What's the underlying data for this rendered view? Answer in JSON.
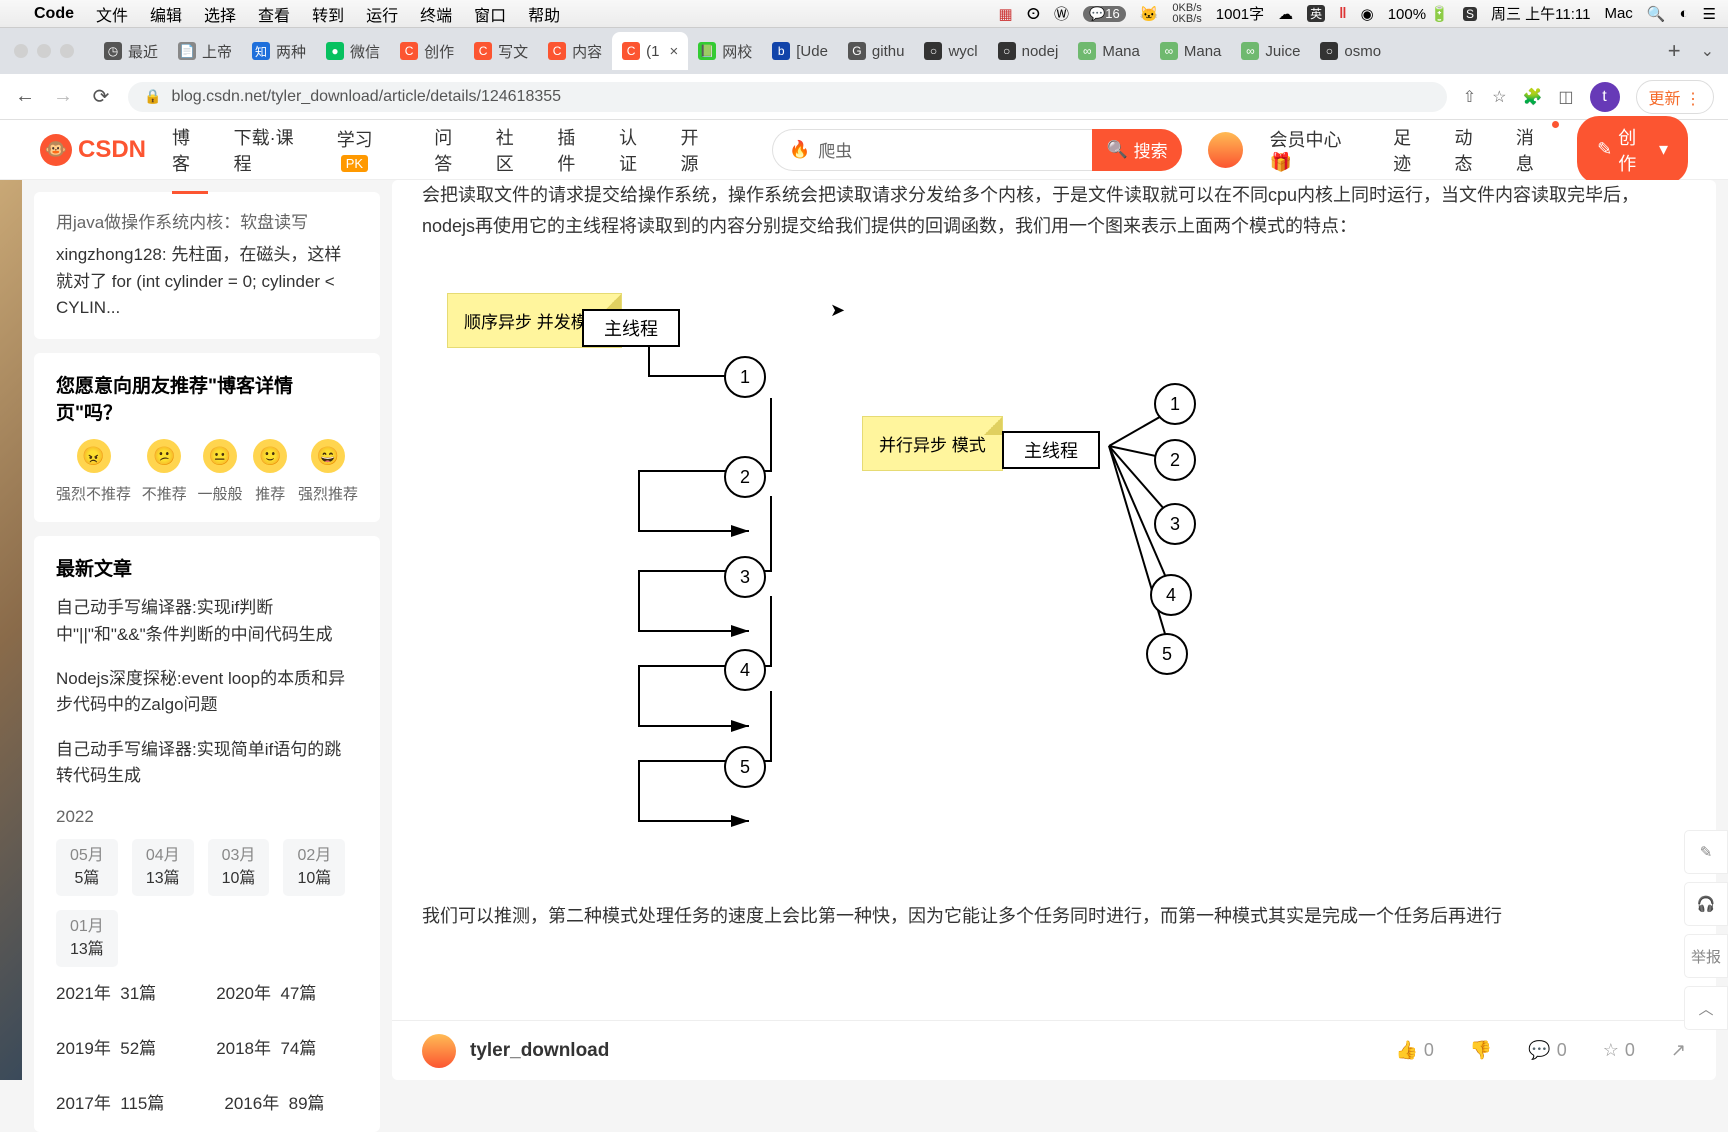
{
  "menubar": {
    "apple": "",
    "app": "Code",
    "items": [
      "文件",
      "编辑",
      "选择",
      "查看",
      "转到",
      "运行",
      "终端",
      "窗口",
      "帮助"
    ],
    "right": {
      "wechat_count": "16",
      "net_up": "0KB/s",
      "net_down": "0KB/s",
      "input_count": "1001字",
      "battery": "100%",
      "clock": "周三 上午11:11",
      "mac": "Mac"
    }
  },
  "tabs": [
    {
      "label": "最近",
      "fav": "◷",
      "color": "#555"
    },
    {
      "label": "上帝",
      "fav": "📄",
      "color": "#888"
    },
    {
      "label": "两种",
      "fav": "知",
      "color": "#1e6fdb"
    },
    {
      "label": "微信",
      "fav": "●",
      "color": "#07c160"
    },
    {
      "label": "创作",
      "fav": "C",
      "color": "#fc5531"
    },
    {
      "label": "写文",
      "fav": "C",
      "color": "#fc5531"
    },
    {
      "label": "内容",
      "fav": "C",
      "color": "#fc5531"
    },
    {
      "label": "(1",
      "fav": "C",
      "color": "#fc5531",
      "active": true
    },
    {
      "label": "网校",
      "fav": "📗",
      "color": "#3c3"
    },
    {
      "label": "[Ude",
      "fav": "b",
      "color": "#14a"
    },
    {
      "label": "githu",
      "fav": "G",
      "color": "#555"
    },
    {
      "label": "wycl",
      "fav": "○",
      "color": "#333"
    },
    {
      "label": "nodej",
      "fav": "○",
      "color": "#333"
    },
    {
      "label": "Mana",
      "fav": "∞",
      "color": "#6fb96f"
    },
    {
      "label": "Mana",
      "fav": "∞",
      "color": "#6fb96f"
    },
    {
      "label": "Juice",
      "fav": "∞",
      "color": "#6fb96f"
    },
    {
      "label": "osmo",
      "fav": "○",
      "color": "#333"
    }
  ],
  "addrbar": {
    "url": "blog.csdn.net/tyler_download/article/details/124618355",
    "update": "更新"
  },
  "csdn": {
    "logo": "CSDN",
    "nav": [
      "博客",
      "下载·课程",
      "学习",
      "问答",
      "社区",
      "插件",
      "认证",
      "开源"
    ],
    "nav_pk": "PK",
    "search_placeholder": "爬虫",
    "search_btn": "搜索",
    "right": {
      "member": "会员中心",
      "footprint": "足迹",
      "dynamic": "动态",
      "msg": "消息",
      "create": "创作"
    }
  },
  "sidebar": {
    "comment": {
      "title": "用java做操作系统内核：软盘读写",
      "body": "xingzhong128: 先柱面，在磁头，这样就对了 for (int cylinder = 0; cylinder < CYLIN..."
    },
    "recommend": {
      "title": "您愿意向朋友推荐\"博客详情页\"吗？",
      "opts": [
        "强烈不推荐",
        "不推荐",
        "一般般",
        "推荐",
        "强烈推荐"
      ]
    },
    "latest": {
      "title": "最新文章",
      "items": [
        "自己动手写编译器:实现if判断中\"||\"和\"&&\"条件判断的中间代码生成",
        "Nodejs深度探秘:event loop的本质和异步代码中的Zalgo问题",
        "自己动手写编译器:实现简单if语句的跳转代码生成"
      ]
    },
    "archive": {
      "year1": "2022",
      "months": [
        {
          "m": "05月",
          "c": "5篇"
        },
        {
          "m": "04月",
          "c": "13篇"
        },
        {
          "m": "03月",
          "c": "10篇"
        },
        {
          "m": "02月",
          "c": "10篇"
        },
        {
          "m": "01月",
          "c": "13篇"
        }
      ],
      "years": [
        {
          "y": "2021年",
          "c": "31篇"
        },
        {
          "y": "2020年",
          "c": "47篇"
        },
        {
          "y": "2019年",
          "c": "52篇"
        },
        {
          "y": "2018年",
          "c": "74篇"
        },
        {
          "y": "2017年",
          "c": "115篇"
        },
        {
          "y": "2016年",
          "c": "89篇"
        }
      ]
    }
  },
  "article": {
    "para1": "会把读取文件的请求提交给操作系统，操作系统会把读取请求分发给多个内核，于是文件读取就可以在不同cpu内核上同时运行，当文件内容读取完毕后，nodejs再使用它的主线程将读取到的内容分别提交给我们提供的回调函数，我们用一个图来表示上面两个模式的特点：",
    "para2": "我们可以推测，第二种模式处理任务的速度上会比第一种快，因为它能让多个任务同时进行，而第一种模式其实是完成一个任务后再进行",
    "author": "tyler_download",
    "counts": {
      "like": "0",
      "comment": "0",
      "fav": "0"
    }
  },
  "diagram": {
    "note1": "顺序异步\n并发模式",
    "note2": "并行异步\n模式",
    "box1": "主线程",
    "box2": "主线程",
    "seq": [
      "1",
      "2",
      "3",
      "4",
      "5"
    ],
    "par": [
      "1",
      "2",
      "3",
      "4",
      "5"
    ]
  },
  "float": {
    "report": "举报"
  }
}
